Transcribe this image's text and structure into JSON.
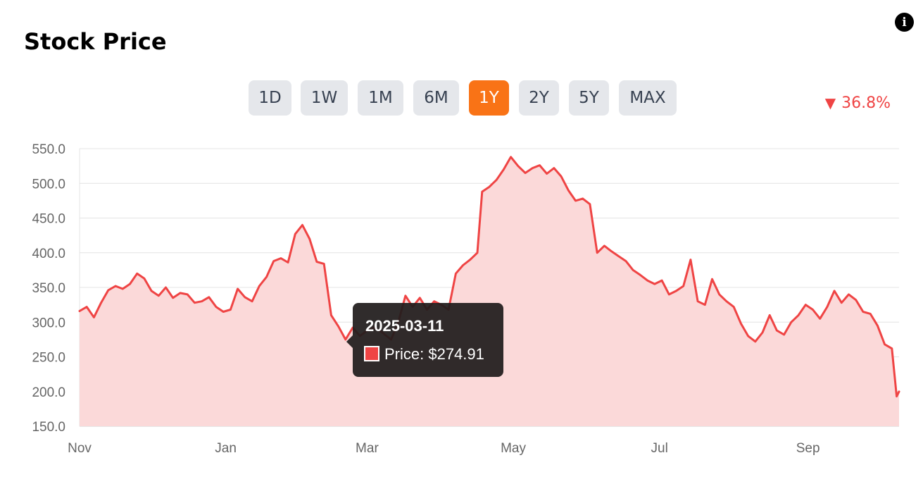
{
  "header": {
    "title": "Stock Price",
    "info_icon": "info-icon"
  },
  "ranges": {
    "items": [
      {
        "label": "1D"
      },
      {
        "label": "1W"
      },
      {
        "label": "1M"
      },
      {
        "label": "6M"
      },
      {
        "label": "1Y",
        "active": true
      },
      {
        "label": "2Y"
      },
      {
        "label": "5Y"
      },
      {
        "label": "MAX"
      }
    ],
    "active_color": "#f97316",
    "inactive_color": "#e5e7eb"
  },
  "change": {
    "direction": "down",
    "arrow": "▼",
    "value": "36.8%",
    "color": "#ef4444"
  },
  "tooltip": {
    "date": "2025-03-11",
    "label": "Price: $274.91"
  },
  "chart_data": {
    "type": "area",
    "title": "",
    "xlabel": "",
    "ylabel": "",
    "ylim": [
      150,
      550
    ],
    "y_ticks": [
      "550.0",
      "500.0",
      "450.0",
      "400.0",
      "350.0",
      "300.0",
      "250.0",
      "200.0",
      "150.0"
    ],
    "x_ticks": [
      {
        "label": "Nov",
        "date": "2024-11-01"
      },
      {
        "label": "Jan",
        "date": "2025-01-01"
      },
      {
        "label": "Mar",
        "date": "2025-03-01"
      },
      {
        "label": "May",
        "date": "2025-05-01"
      },
      {
        "label": "Jul",
        "date": "2025-07-01"
      },
      {
        "label": "Sep",
        "date": "2025-09-01"
      }
    ],
    "grid": true,
    "line_color": "#ef4444",
    "fill_color": "#fbd9d9",
    "series": [
      {
        "values": [
          [
            "2024-11-01",
            316
          ],
          [
            "2024-11-04",
            322
          ],
          [
            "2024-11-07",
            307
          ],
          [
            "2024-11-10",
            328
          ],
          [
            "2024-11-13",
            346
          ],
          [
            "2024-11-16",
            352
          ],
          [
            "2024-11-19",
            348
          ],
          [
            "2024-11-22",
            355
          ],
          [
            "2024-11-25",
            370
          ],
          [
            "2024-11-28",
            363
          ],
          [
            "2024-12-01",
            345
          ],
          [
            "2024-12-04",
            338
          ],
          [
            "2024-12-07",
            350
          ],
          [
            "2024-12-10",
            335
          ],
          [
            "2024-12-13",
            342
          ],
          [
            "2024-12-16",
            340
          ],
          [
            "2024-12-19",
            328
          ],
          [
            "2024-12-22",
            330
          ],
          [
            "2024-12-25",
            336
          ],
          [
            "2024-12-28",
            322
          ],
          [
            "2024-12-31",
            315
          ],
          [
            "2025-01-03",
            318
          ],
          [
            "2025-01-06",
            348
          ],
          [
            "2025-01-09",
            336
          ],
          [
            "2025-01-12",
            330
          ],
          [
            "2025-01-15",
            352
          ],
          [
            "2025-01-18",
            365
          ],
          [
            "2025-01-21",
            388
          ],
          [
            "2025-01-24",
            392
          ],
          [
            "2025-01-27",
            386
          ],
          [
            "2025-01-30",
            427
          ],
          [
            "2025-02-02",
            440
          ],
          [
            "2025-02-05",
            420
          ],
          [
            "2025-02-08",
            387
          ],
          [
            "2025-02-11",
            384
          ],
          [
            "2025-02-14",
            310
          ],
          [
            "2025-02-17",
            294
          ],
          [
            "2025-02-20",
            275
          ],
          [
            "2025-02-23",
            292
          ],
          [
            "2025-02-26",
            280
          ],
          [
            "2025-03-01",
            288
          ],
          [
            "2025-03-04",
            292
          ],
          [
            "2025-03-07",
            286
          ],
          [
            "2025-03-11",
            274.91
          ],
          [
            "2025-03-14",
            300
          ],
          [
            "2025-03-17",
            338
          ],
          [
            "2025-03-20",
            322
          ],
          [
            "2025-03-23",
            335
          ],
          [
            "2025-03-26",
            318
          ],
          [
            "2025-03-29",
            330
          ],
          [
            "2025-04-01",
            325
          ],
          [
            "2025-04-04",
            318
          ],
          [
            "2025-04-07",
            370
          ],
          [
            "2025-04-10",
            382
          ],
          [
            "2025-04-13",
            390
          ],
          [
            "2025-04-16",
            400
          ],
          [
            "2025-04-18",
            488
          ],
          [
            "2025-04-21",
            495
          ],
          [
            "2025-04-24",
            505
          ],
          [
            "2025-04-27",
            520
          ],
          [
            "2025-04-30",
            538
          ],
          [
            "2025-05-03",
            525
          ],
          [
            "2025-05-06",
            515
          ],
          [
            "2025-05-09",
            522
          ],
          [
            "2025-05-12",
            526
          ],
          [
            "2025-05-15",
            514
          ],
          [
            "2025-05-18",
            522
          ],
          [
            "2025-05-21",
            510
          ],
          [
            "2025-05-24",
            490
          ],
          [
            "2025-05-27",
            475
          ],
          [
            "2025-05-30",
            478
          ],
          [
            "2025-06-02",
            470
          ],
          [
            "2025-06-05",
            400
          ],
          [
            "2025-06-08",
            410
          ],
          [
            "2025-06-11",
            402
          ],
          [
            "2025-06-14",
            395
          ],
          [
            "2025-06-17",
            388
          ],
          [
            "2025-06-20",
            375
          ],
          [
            "2025-06-23",
            368
          ],
          [
            "2025-06-26",
            360
          ],
          [
            "2025-06-29",
            355
          ],
          [
            "2025-07-02",
            360
          ],
          [
            "2025-07-05",
            340
          ],
          [
            "2025-07-08",
            345
          ],
          [
            "2025-07-11",
            352
          ],
          [
            "2025-07-14",
            390
          ],
          [
            "2025-07-17",
            330
          ],
          [
            "2025-07-20",
            325
          ],
          [
            "2025-07-23",
            362
          ],
          [
            "2025-07-26",
            340
          ],
          [
            "2025-07-29",
            330
          ],
          [
            "2025-08-01",
            322
          ],
          [
            "2025-08-04",
            298
          ],
          [
            "2025-08-07",
            280
          ],
          [
            "2025-08-10",
            272
          ],
          [
            "2025-08-13",
            285
          ],
          [
            "2025-08-16",
            310
          ],
          [
            "2025-08-19",
            288
          ],
          [
            "2025-08-22",
            282
          ],
          [
            "2025-08-25",
            300
          ],
          [
            "2025-08-28",
            310
          ],
          [
            "2025-08-31",
            325
          ],
          [
            "2025-09-03",
            318
          ],
          [
            "2025-09-06",
            305
          ],
          [
            "2025-09-09",
            322
          ],
          [
            "2025-09-12",
            345
          ],
          [
            "2025-09-15",
            328
          ],
          [
            "2025-09-18",
            340
          ],
          [
            "2025-09-21",
            332
          ],
          [
            "2025-09-24",
            315
          ],
          [
            "2025-09-27",
            312
          ],
          [
            "2025-09-30",
            295
          ],
          [
            "2025-10-03",
            268
          ],
          [
            "2025-10-06",
            262
          ],
          [
            "2025-10-08",
            193
          ],
          [
            "2025-10-09",
            200
          ]
        ]
      }
    ]
  }
}
